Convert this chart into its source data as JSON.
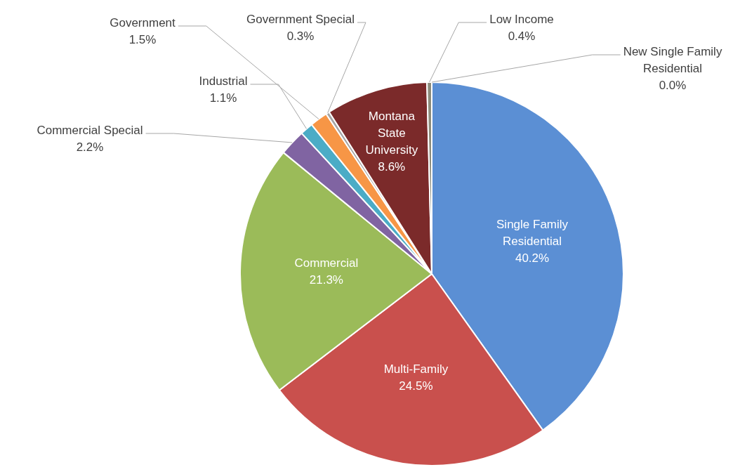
{
  "chart_data": {
    "type": "pie",
    "categories": [
      "Single Family Residential",
      "Multi-Family",
      "Commercial",
      "Commercial Special",
      "Industrial",
      "Government",
      "Government Special",
      "Montana State University",
      "Low Income",
      "New Single Family Residential"
    ],
    "values": [
      40.2,
      24.5,
      21.3,
      2.2,
      1.1,
      1.5,
      0.3,
      8.6,
      0.4,
      0.0
    ],
    "value_labels": [
      "40.2%",
      "24.5%",
      "21.3%",
      "2.2%",
      "1.1%",
      "1.5%",
      "0.3%",
      "8.6%",
      "0.4%",
      "0.0%"
    ],
    "colors": [
      "#5b8fd4",
      "#c9504d",
      "#9bbb59",
      "#8064a2",
      "#4bacc6",
      "#f79646",
      "#a5a5a5",
      "#7b2a2a",
      "#8c8c7c",
      "#4f6228"
    ],
    "legend": false
  }
}
